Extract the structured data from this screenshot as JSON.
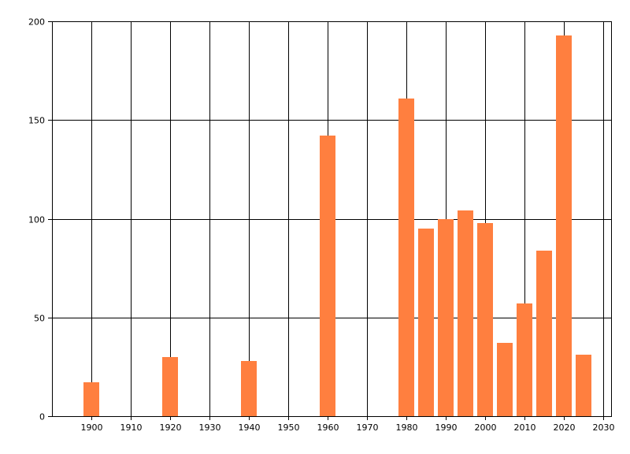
{
  "chart_data": {
    "type": "bar",
    "title": "",
    "xlabel": "",
    "ylabel": "",
    "x": [
      1900,
      1920,
      1940,
      1960,
      1980,
      1985,
      1990,
      1995,
      2000,
      2005,
      2010,
      2015,
      2020,
      2025
    ],
    "values": [
      17,
      30,
      28,
      142,
      161,
      95,
      100,
      104,
      98,
      37,
      57,
      84,
      193,
      31
    ],
    "xlim": [
      1890,
      2032
    ],
    "ylim": [
      0,
      200
    ],
    "x_ticks": [
      1900,
      1910,
      1920,
      1930,
      1940,
      1950,
      1960,
      1970,
      1980,
      1990,
      2000,
      2010,
      2020,
      2030
    ],
    "y_ticks": [
      0,
      50,
      100,
      150,
      200
    ],
    "grid": true,
    "bar_color": "#FF7F3F",
    "legend": "none"
  }
}
